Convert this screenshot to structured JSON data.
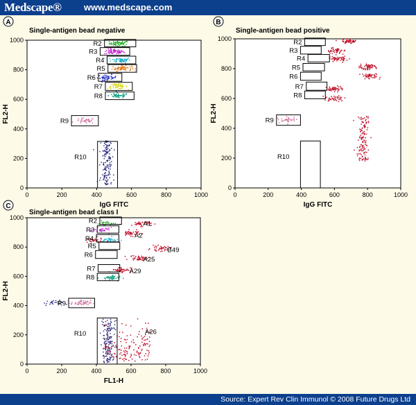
{
  "header": {
    "brand": "Medscape®",
    "url": "www.medscape.com"
  },
  "footer": {
    "source": "Source: Expert Rev Clin Immunol © 2008 Future Drugs Ltd"
  },
  "colors": {
    "bar": "#0c3f8c",
    "background": "#fdfae8",
    "red": "#c0102a",
    "green": "#20b020",
    "magenta": "#c020d0",
    "cyan": "#20b0d0",
    "orange": "#e07810",
    "blue": "#2030c0",
    "yellow": "#d8d820",
    "teal": "#10a080",
    "pink": "#d070a0",
    "navy": "#303080"
  },
  "chart_data": [
    {
      "panel": "A",
      "type": "scatter",
      "title": "Single-antigen bead negative",
      "xlabel": "IgG FITC",
      "ylabel": "FL2-H",
      "xlim": [
        0,
        1000
      ],
      "ylim": [
        0,
        1000
      ],
      "xticks": [
        0,
        200,
        400,
        600,
        800,
        1000
      ],
      "yticks": [
        0,
        200,
        400,
        600,
        800,
        1000
      ],
      "gates": [
        {
          "label": "R2",
          "x": [
            445,
            625
          ],
          "y": [
            955,
            1005
          ]
        },
        {
          "label": "R3",
          "x": [
            420,
            590
          ],
          "y": [
            898,
            950
          ]
        },
        {
          "label": "R4",
          "x": [
            460,
            625
          ],
          "y": [
            840,
            892
          ]
        },
        {
          "label": "R5",
          "x": [
            465,
            630
          ],
          "y": [
            783,
            835
          ]
        },
        {
          "label": "R6",
          "x": [
            410,
            545
          ],
          "y": [
            722,
            776
          ]
        },
        {
          "label": "R7",
          "x": [
            450,
            605
          ],
          "y": [
            660,
            715
          ]
        },
        {
          "label": "R8",
          "x": [
            450,
            615
          ],
          "y": [
            598,
            650
          ]
        },
        {
          "label": "R9",
          "x": [
            255,
            410
          ],
          "y": [
            420,
            490
          ]
        },
        {
          "label": "R10",
          "x": [
            405,
            520
          ],
          "y": [
            0,
            315
          ]
        }
      ],
      "clusters": [
        {
          "x": 530,
          "y": 978,
          "color": "green",
          "n": 60
        },
        {
          "x": 500,
          "y": 922,
          "color": "magenta",
          "n": 60
        },
        {
          "x": 540,
          "y": 866,
          "color": "cyan",
          "n": 60
        },
        {
          "x": 545,
          "y": 810,
          "color": "orange",
          "n": 60
        },
        {
          "x": 460,
          "y": 748,
          "color": "blue",
          "n": 50
        },
        {
          "x": 520,
          "y": 688,
          "color": "yellow",
          "n": 55
        },
        {
          "x": 525,
          "y": 625,
          "color": "teal",
          "n": 50
        },
        {
          "x": 335,
          "y": 455,
          "color": "pink",
          "n": 35
        },
        {
          "x": 455,
          "y": 160,
          "color": "navy",
          "n": 150
        }
      ]
    },
    {
      "panel": "B",
      "type": "scatter",
      "title": "Single-antigen bead positive",
      "xlabel": "IgG FITC",
      "ylabel": "FL2-H",
      "xlim": [
        0,
        1000
      ],
      "ylim": [
        0,
        1000
      ],
      "xticks": [
        0,
        200,
        400,
        600,
        800,
        1000
      ],
      "yticks": [
        0,
        200,
        400,
        600,
        800,
        1000
      ],
      "gates": [
        {
          "label": "R2",
          "x": [
            420,
            545
          ],
          "y": [
            955,
            1005
          ]
        },
        {
          "label": "R3",
          "x": [
            395,
            520
          ],
          "y": [
            898,
            950
          ]
        },
        {
          "label": "R4",
          "x": [
            440,
            570
          ],
          "y": [
            845,
            895
          ]
        },
        {
          "label": "R5",
          "x": [
            410,
            540
          ],
          "y": [
            785,
            835
          ]
        },
        {
          "label": "R6",
          "x": [
            395,
            520
          ],
          "y": [
            722,
            776
          ]
        },
        {
          "label": "R7",
          "x": [
            430,
            555
          ],
          "y": [
            655,
            710
          ]
        },
        {
          "label": "R8",
          "x": [
            420,
            545
          ],
          "y": [
            598,
            650
          ]
        },
        {
          "label": "R9",
          "x": [
            250,
            395
          ],
          "y": [
            420,
            490
          ]
        },
        {
          "label": "R10",
          "x": [
            395,
            515
          ],
          "y": [
            0,
            315
          ]
        }
      ],
      "clusters": [
        {
          "x": 690,
          "y": 985,
          "color": "red",
          "n": 50
        },
        {
          "x": 610,
          "y": 920,
          "color": "red",
          "n": 45
        },
        {
          "x": 625,
          "y": 865,
          "color": "red",
          "n": 50
        },
        {
          "x": 800,
          "y": 810,
          "color": "red",
          "n": 55
        },
        {
          "x": 815,
          "y": 750,
          "color": "red",
          "n": 45
        },
        {
          "x": 595,
          "y": 665,
          "color": "red",
          "n": 50
        },
        {
          "x": 605,
          "y": 600,
          "color": "red",
          "n": 40
        },
        {
          "x": 310,
          "y": 455,
          "color": "pink",
          "n": 35
        },
        {
          "x": 775,
          "y": 320,
          "color": "red",
          "n": 130
        }
      ]
    },
    {
      "panel": "C",
      "type": "scatter",
      "title": "Single-antigen bead class I",
      "xlabel": "FL1-H",
      "ylabel": "FL2-H",
      "xlim": [
        0,
        1000
      ],
      "ylim": [
        0,
        1000
      ],
      "xticks": [
        0,
        200,
        400,
        600,
        800,
        1000
      ],
      "yticks": [
        0,
        200,
        400,
        600,
        800,
        1000
      ],
      "gates": [
        {
          "label": "R2",
          "x": [
            420,
            545
          ],
          "y": [
            955,
            1005
          ]
        },
        {
          "label": "R3",
          "x": [
            405,
            530
          ],
          "y": [
            895,
            945
          ]
        },
        {
          "label": "R4",
          "x": [
            400,
            530
          ],
          "y": [
            835,
            885
          ]
        },
        {
          "label": "R5",
          "x": [
            415,
            535
          ],
          "y": [
            783,
            833
          ]
        },
        {
          "label": "R6",
          "x": [
            395,
            520
          ],
          "y": [
            722,
            776
          ]
        },
        {
          "label": "R7",
          "x": [
            410,
            535
          ],
          "y": [
            630,
            680
          ]
        },
        {
          "label": "R8",
          "x": [
            405,
            530
          ],
          "y": [
            570,
            620
          ]
        },
        {
          "label": "R9",
          "x": [
            240,
            390
          ],
          "y": [
            385,
            450
          ]
        },
        {
          "label": "R10",
          "x": [
            405,
            520
          ],
          "y": [
            0,
            315
          ]
        }
      ],
      "annotations": [
        {
          "text": "A1",
          "x": 670,
          "y": 960
        },
        {
          "text": "A2",
          "x": 620,
          "y": 880
        },
        {
          "text": "B49",
          "x": 810,
          "y": 780
        },
        {
          "text": "A25",
          "x": 670,
          "y": 715
        },
        {
          "text": "A29",
          "x": 590,
          "y": 635
        },
        {
          "text": "A26",
          "x": 680,
          "y": 220
        }
      ],
      "clusters": [
        {
          "x": 660,
          "y": 960,
          "color": "red",
          "n": 45
        },
        {
          "x": 460,
          "y": 960,
          "color": "green",
          "n": 25
        },
        {
          "x": 600,
          "y": 895,
          "color": "red",
          "n": 40
        },
        {
          "x": 440,
          "y": 915,
          "color": "magenta",
          "n": 30
        },
        {
          "x": 380,
          "y": 845,
          "color": "red",
          "n": 35
        },
        {
          "x": 480,
          "y": 848,
          "color": "cyan",
          "n": 30
        },
        {
          "x": 770,
          "y": 790,
          "color": "red",
          "n": 40
        },
        {
          "x": 650,
          "y": 725,
          "color": "red",
          "n": 40
        },
        {
          "x": 545,
          "y": 645,
          "color": "red",
          "n": 45
        },
        {
          "x": 475,
          "y": 588,
          "color": "teal",
          "n": 40
        },
        {
          "x": 150,
          "y": 418,
          "color": "navy",
          "n": 25
        },
        {
          "x": 310,
          "y": 418,
          "color": "pink",
          "n": 45
        },
        {
          "x": 470,
          "y": 150,
          "color": "navy",
          "n": 160
        },
        {
          "x": 580,
          "y": 170,
          "color": "red",
          "n": 150
        }
      ]
    }
  ]
}
